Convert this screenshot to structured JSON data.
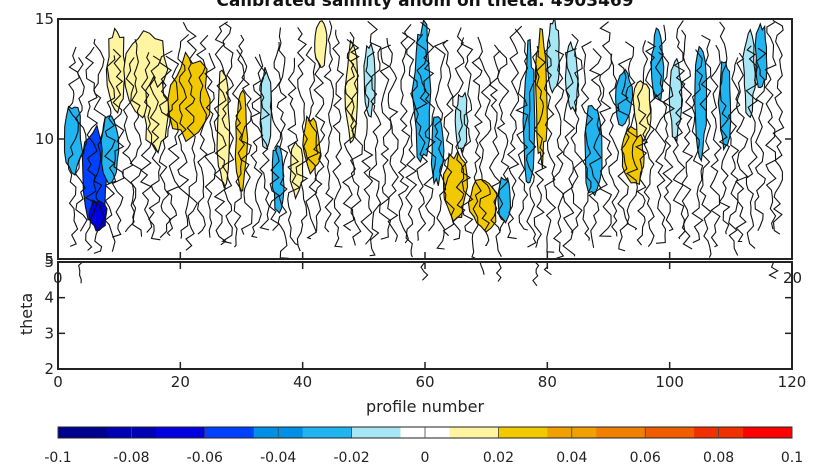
{
  "chart_data": {
    "type": "heatmap",
    "title": "Calibrated salinity anom on theta: 4903469",
    "xlabel": "profile number",
    "ylabel": "theta",
    "xlim": [
      0,
      120
    ],
    "ylim": [
      2,
      15
    ],
    "upper_panel_ylim": [
      5,
      15
    ],
    "lower_panel_ylim": [
      2,
      5
    ],
    "x_ticks": [
      "0",
      "20",
      "40",
      "60",
      "80",
      "100",
      "120"
    ],
    "upper_y_ticks": [
      "15",
      "10",
      "5"
    ],
    "lower_y_ticks": [
      "5",
      "4",
      "3",
      "2"
    ],
    "colorbar": {
      "min": -0.1,
      "max": 0.1,
      "tick_labels": [
        "-0.1",
        "-0.08",
        "-0.06",
        "-0.04",
        "-0.02",
        "0",
        "0.02",
        "0.04",
        "0.06",
        "0.08",
        "0.1"
      ],
      "colors": [
        "#00008f",
        "#0000b5",
        "#0000e0",
        "#0040ff",
        "#0090e8",
        "#20b4f0",
        "#a7e6f5",
        "#ffffff",
        "#fff5a0",
        "#f2c800",
        "#f0a000",
        "#f08000",
        "#f05c00",
        "#f03000",
        "#ff0000"
      ]
    },
    "anomaly_bands": [
      {
        "x0": 1,
        "x1": 4,
        "y0": 8.5,
        "y1": 11.5,
        "value": -0.03
      },
      {
        "x0": 4,
        "x1": 8,
        "y0": 6.5,
        "y1": 10.5,
        "value": -0.05
      },
      {
        "x0": 5,
        "x1": 8,
        "y0": 6.2,
        "y1": 7.5,
        "value": -0.07
      },
      {
        "x0": 7,
        "x1": 10,
        "y0": 8.0,
        "y1": 11.0,
        "value": -0.02
      },
      {
        "x0": 8,
        "x1": 11,
        "y0": 11.0,
        "y1": 14.8,
        "value": 0.015
      },
      {
        "x0": 11,
        "x1": 18,
        "y0": 11.0,
        "y1": 14.8,
        "value": 0.01
      },
      {
        "x0": 14,
        "x1": 18,
        "y0": 9.5,
        "y1": 12.5,
        "value": 0.015
      },
      {
        "x0": 18,
        "x1": 25,
        "y0": 9.8,
        "y1": 13.5,
        "value": 0.025
      },
      {
        "x0": 26,
        "x1": 28,
        "y0": 8.0,
        "y1": 13.0,
        "value": 0.015
      },
      {
        "x0": 29,
        "x1": 31,
        "y0": 8.0,
        "y1": 12.0,
        "value": 0.025
      },
      {
        "x0": 33,
        "x1": 35,
        "y0": 9.5,
        "y1": 13.0,
        "value": -0.015
      },
      {
        "x0": 35,
        "x1": 37,
        "y0": 7.0,
        "y1": 10.0,
        "value": -0.02
      },
      {
        "x0": 38,
        "x1": 40,
        "y0": 7.5,
        "y1": 10.0,
        "value": 0.015
      },
      {
        "x0": 40,
        "x1": 43,
        "y0": 8.5,
        "y1": 11.0,
        "value": 0.025
      },
      {
        "x0": 42,
        "x1": 44,
        "y0": 13.0,
        "y1": 15.0,
        "value": 0.015
      },
      {
        "x0": 47,
        "x1": 49,
        "y0": 10.0,
        "y1": 14.0,
        "value": 0.015
      },
      {
        "x0": 50,
        "x1": 52,
        "y0": 11.0,
        "y1": 14.0,
        "value": -0.015
      },
      {
        "x0": 58,
        "x1": 61,
        "y0": 9.0,
        "y1": 15.0,
        "value": -0.025
      },
      {
        "x0": 61,
        "x1": 63,
        "y0": 8.0,
        "y1": 11.0,
        "value": -0.025
      },
      {
        "x0": 63,
        "x1": 67,
        "y0": 6.5,
        "y1": 9.5,
        "value": 0.025
      },
      {
        "x0": 65,
        "x1": 67,
        "y0": 9.5,
        "y1": 12.0,
        "value": -0.015
      },
      {
        "x0": 67,
        "x1": 72,
        "y0": 6.2,
        "y1": 8.5,
        "value": 0.025
      },
      {
        "x0": 72,
        "x1": 74,
        "y0": 6.5,
        "y1": 8.5,
        "value": -0.03
      },
      {
        "x0": 76,
        "x1": 78,
        "y0": 7.5,
        "y1": 14.0,
        "value": -0.03
      },
      {
        "x0": 78,
        "x1": 80,
        "y0": 9.0,
        "y1": 14.5,
        "value": 0.025
      },
      {
        "x0": 80,
        "x1": 82,
        "y0": 12.0,
        "y1": 15.0,
        "value": -0.015
      },
      {
        "x0": 83,
        "x1": 85,
        "y0": 11.0,
        "y1": 14.0,
        "value": -0.015
      },
      {
        "x0": 86,
        "x1": 89,
        "y0": 7.5,
        "y1": 11.5,
        "value": -0.03
      },
      {
        "x0": 91,
        "x1": 94,
        "y0": 10.5,
        "y1": 13.0,
        "value": -0.03
      },
      {
        "x0": 92,
        "x1": 96,
        "y0": 8.0,
        "y1": 10.5,
        "value": 0.025
      },
      {
        "x0": 94,
        "x1": 97,
        "y0": 10.0,
        "y1": 12.5,
        "value": 0.015
      },
      {
        "x0": 97,
        "x1": 99,
        "y0": 11.5,
        "y1": 14.5,
        "value": -0.02
      },
      {
        "x0": 100,
        "x1": 102,
        "y0": 10.0,
        "y1": 13.5,
        "value": -0.015
      },
      {
        "x0": 104,
        "x1": 106,
        "y0": 9.0,
        "y1": 14.0,
        "value": -0.025
      },
      {
        "x0": 108,
        "x1": 110,
        "y0": 9.5,
        "y1": 13.5,
        "value": -0.02
      },
      {
        "x0": 112,
        "x1": 114,
        "y0": 11.0,
        "y1": 14.5,
        "value": -0.015
      },
      {
        "x0": 114,
        "x1": 116,
        "y0": 12.0,
        "y1": 14.8,
        "value": -0.025
      }
    ],
    "contour_seeds": [
      3,
      6,
      9,
      12,
      15,
      18,
      21,
      24,
      27,
      30,
      33,
      36,
      39,
      42,
      45,
      48,
      51,
      54,
      57,
      60,
      63,
      66,
      69,
      72,
      75,
      78,
      81,
      84,
      87,
      90,
      93,
      96,
      99,
      102,
      105,
      108,
      111,
      114,
      117
    ]
  }
}
